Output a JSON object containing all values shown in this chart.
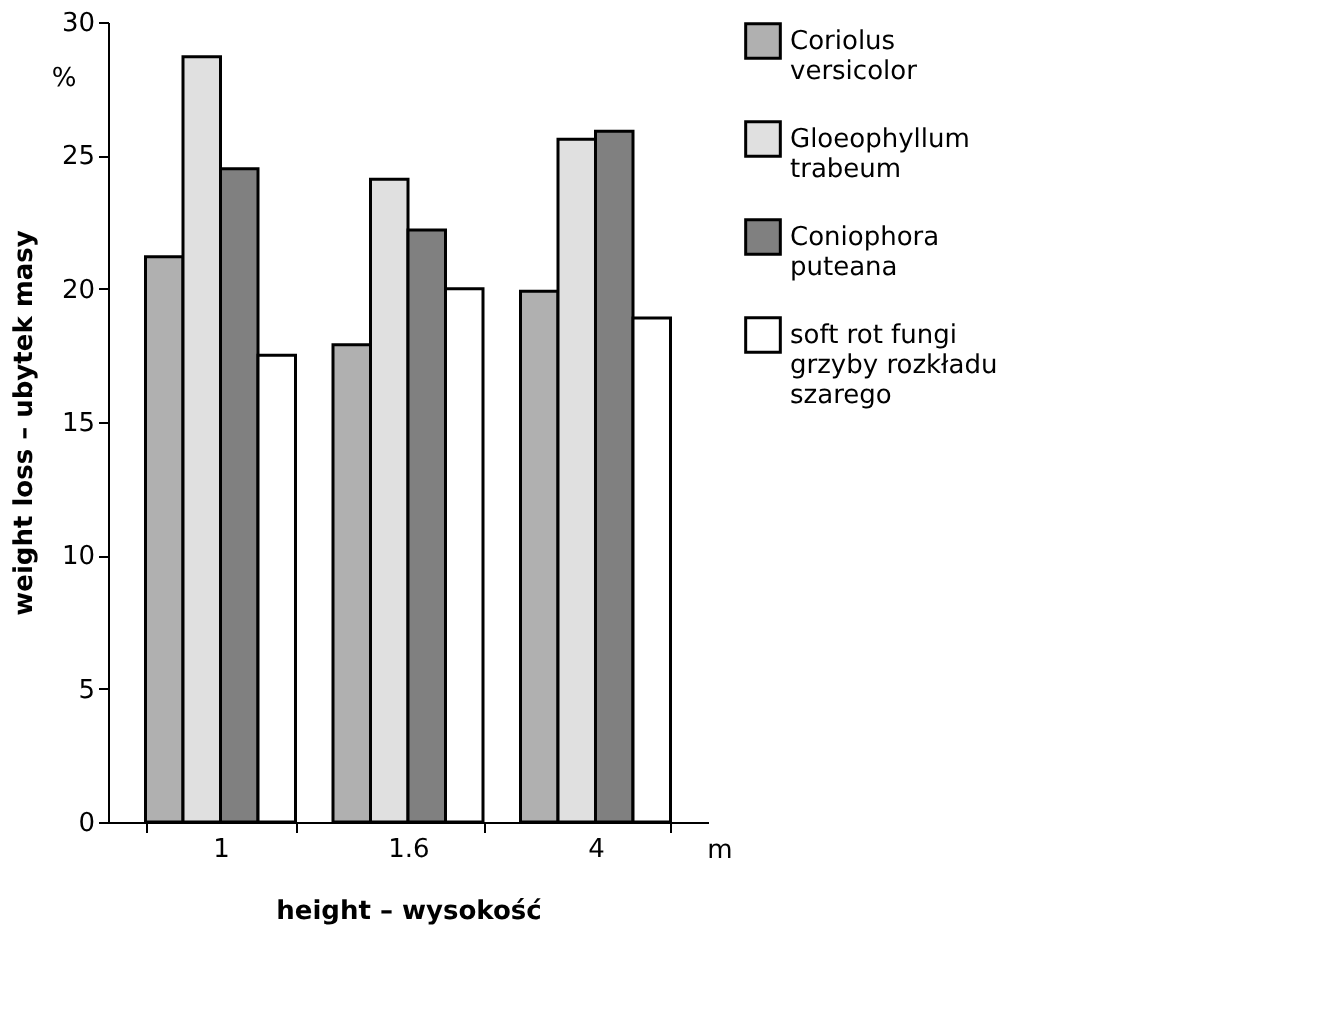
{
  "chart_data": {
    "type": "bar",
    "categories": [
      "1",
      "1.6",
      "4"
    ],
    "series": [
      {
        "name": "Coriolus\nversicolor",
        "color": "#b0b0b0",
        "values": [
          21.2,
          17.9,
          19.9
        ]
      },
      {
        "name": "Gloeophyllum\ntrabeum",
        "color": "#e0e0e0",
        "values": [
          28.7,
          24.1,
          25.6
        ]
      },
      {
        "name": "Coniophora\nputeana",
        "color": "#808080",
        "values": [
          24.5,
          22.2,
          25.9
        ]
      },
      {
        "name": "soft rot fungi\ngrzyby rozkładu\nszarego",
        "color": "#ffffff",
        "values": [
          17.5,
          20.0,
          18.9
        ]
      }
    ],
    "xlabel": "height – wysokość",
    "ylabel": "weight loss – ubytek masy",
    "annotations": [
      "%",
      "m"
    ],
    "ylim": [
      0,
      30
    ],
    "yticks": [
      0,
      5,
      10,
      15,
      20,
      25,
      30
    ],
    "grid": false,
    "legend": "right"
  }
}
